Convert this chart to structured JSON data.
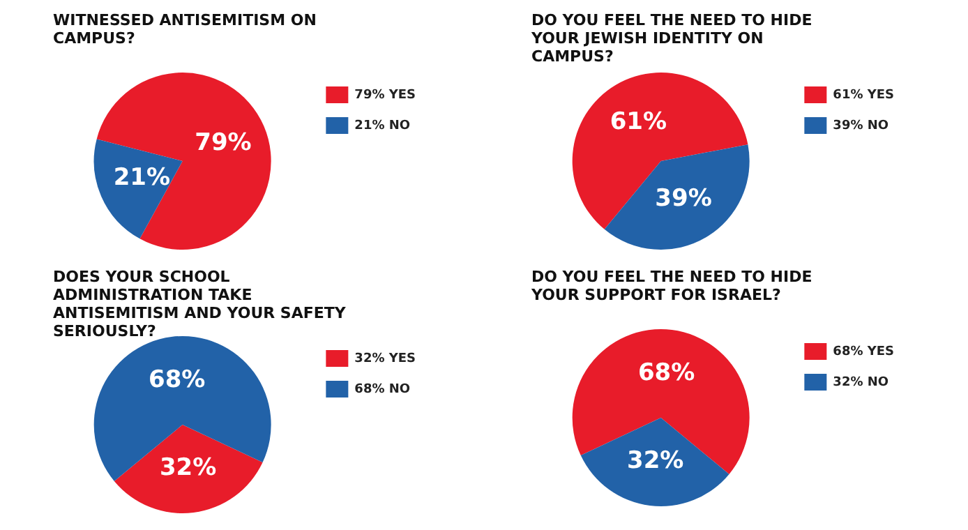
{
  "chart_data": [
    {
      "type": "pie",
      "title": "WITNESSED ANTISEMITISM ON CAMPUS?",
      "categories": [
        "79% YES",
        "21% NO"
      ],
      "values": [
        79,
        21
      ],
      "colors": [
        "#e81c2a",
        "#2262a8"
      ],
      "value_labels": [
        "79%",
        "21%"
      ],
      "legend": "right"
    },
    {
      "type": "pie",
      "title": "DO YOU FEEL THE NEED TO HIDE YOUR JEWISH IDENTITY ON CAMPUS?",
      "categories": [
        "61% YES",
        "39% NO"
      ],
      "values": [
        61,
        39
      ],
      "colors": [
        "#e81c2a",
        "#2262a8"
      ],
      "value_labels": [
        "61%",
        "39%"
      ],
      "legend": "right"
    },
    {
      "type": "pie",
      "title": "DOES YOUR SCHOOL ADMINISTRATION TAKE ANTISEMITISM AND YOUR SAFETY SERIOUSLY?",
      "categories": [
        "32% YES",
        "68% NO"
      ],
      "values": [
        32,
        68
      ],
      "colors": [
        "#e81c2a",
        "#2262a8"
      ],
      "value_labels": [
        "32%",
        "68%"
      ],
      "legend": "right"
    },
    {
      "type": "pie",
      "title": "DO YOU FEEL THE NEED TO HIDE YOUR SUPPORT FOR ISRAEL?",
      "categories": [
        "68% YES",
        "32% NO"
      ],
      "values": [
        68,
        32
      ],
      "colors": [
        "#e81c2a",
        "#2262a8"
      ],
      "value_labels": [
        "68%",
        "32%"
      ],
      "legend": "right"
    }
  ]
}
